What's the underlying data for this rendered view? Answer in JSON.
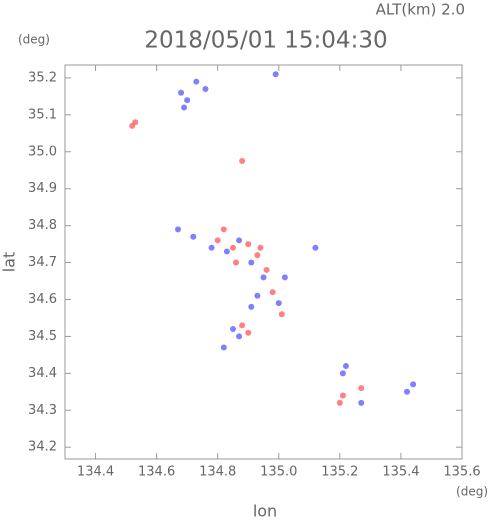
{
  "chart_data": {
    "type": "scatter",
    "title": "2018/05/01 15:04:30",
    "annotation": "ALT(km)  2.0",
    "y_unit": "(deg)",
    "x_unit": "(deg)",
    "ylabel": "lat",
    "xlabel": "lon",
    "xlim": [
      134.3,
      135.6
    ],
    "ylim": [
      34.168,
      35.235
    ],
    "xticks": [
      134.4,
      134.6,
      134.8,
      {
        "value": 135.0,
        "label": "135.0"
      },
      135.2,
      135.4,
      135.6
    ],
    "yticks": [
      34.2,
      34.3,
      34.4,
      34.5,
      34.6,
      34.7,
      34.8,
      34.9,
      {
        "value": 35.0,
        "label": "35.0"
      },
      35.1,
      35.2
    ],
    "series": [
      {
        "color": "#ff6060",
        "x": [
          134.53,
          134.52,
          134.88,
          134.8,
          134.85,
          134.9,
          134.93,
          134.98,
          134.96,
          134.9,
          134.88,
          135.01,
          135.21,
          135.2,
          135.27,
          134.82,
          134.94,
          134.86
        ],
        "y": [
          35.08,
          35.07,
          34.975,
          34.76,
          34.74,
          34.75,
          34.72,
          34.62,
          34.68,
          34.51,
          34.53,
          34.56,
          34.34,
          34.32,
          34.36,
          34.79,
          34.74,
          34.7
        ]
      },
      {
        "color": "#6060ff",
        "x": [
          134.68,
          134.7,
          134.73,
          134.99,
          134.69,
          134.67,
          134.72,
          134.78,
          134.83,
          134.87,
          134.91,
          134.95,
          134.93,
          135.02,
          135.0,
          134.87,
          134.85,
          134.82,
          135.12,
          135.22,
          135.21,
          135.27,
          135.42,
          135.44,
          134.91,
          134.76
        ],
        "y": [
          35.16,
          35.14,
          35.19,
          35.21,
          35.12,
          34.79,
          34.77,
          34.74,
          34.73,
          34.76,
          34.7,
          34.66,
          34.61,
          34.66,
          34.59,
          34.5,
          34.52,
          34.47,
          34.74,
          34.42,
          34.4,
          34.32,
          34.35,
          34.37,
          34.58,
          35.17
        ]
      }
    ]
  }
}
